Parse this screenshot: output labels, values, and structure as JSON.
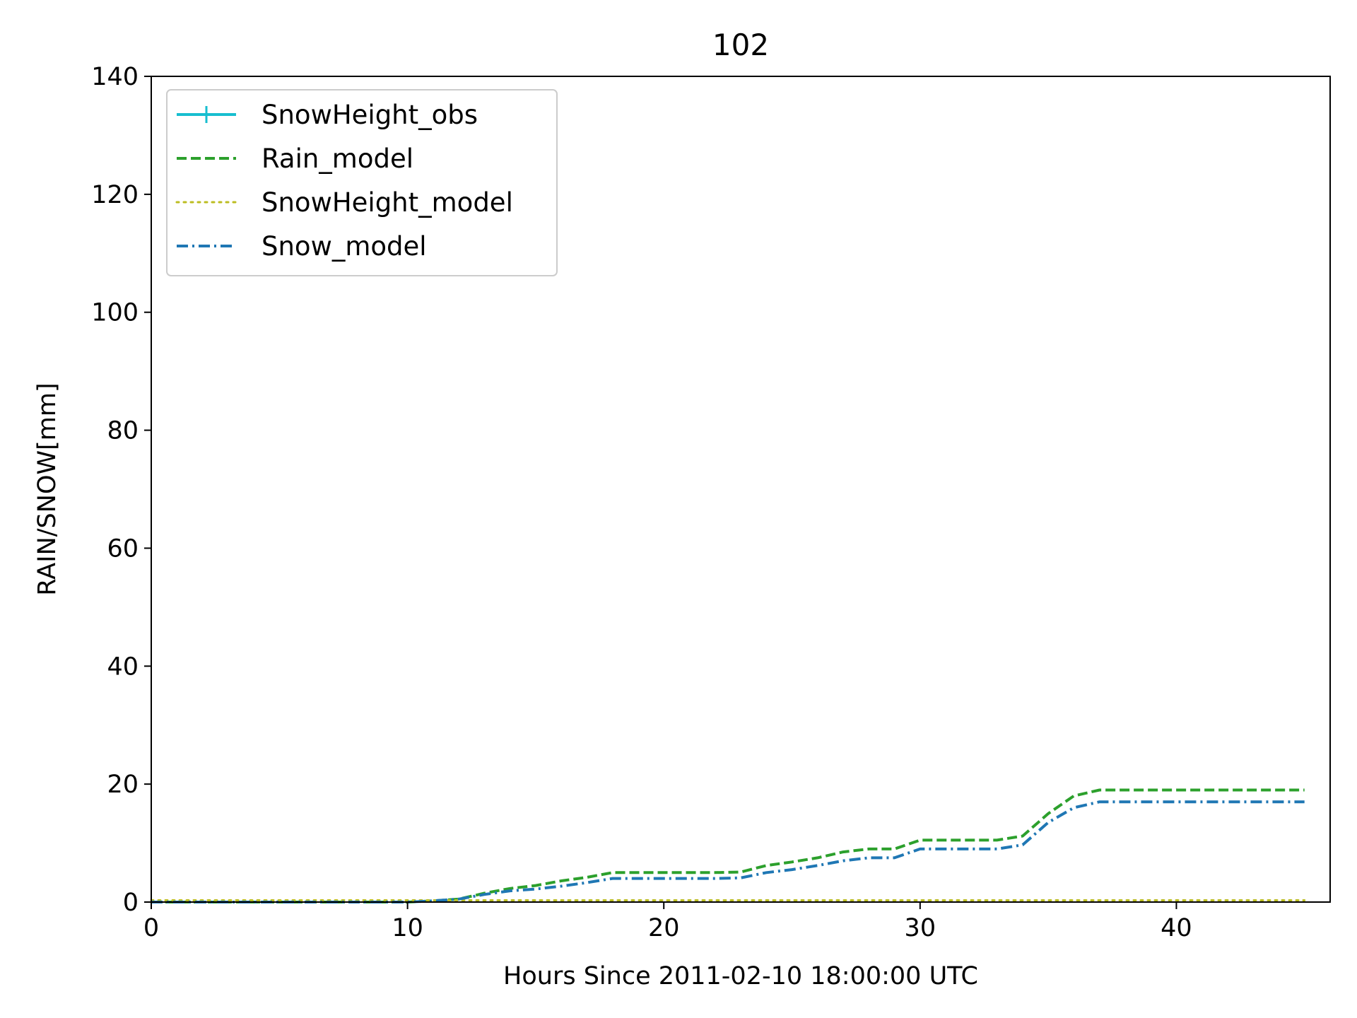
{
  "chart_data": {
    "type": "line",
    "title": "102",
    "xlabel": "Hours Since 2011-02-10 18:00:00 UTC",
    "ylabel": "RAIN/SNOW[mm]",
    "xlim": [
      0,
      46
    ],
    "ylim": [
      0,
      140
    ],
    "xticks": [
      0,
      10,
      20,
      30,
      40
    ],
    "yticks": [
      0,
      20,
      40,
      60,
      80,
      100,
      120,
      140
    ],
    "grid": false,
    "legend_position": "upper left",
    "series": [
      {
        "name": "SnowHeight_obs",
        "color": "#17becf",
        "style": "solid-with-plus-markers",
        "x": [],
        "y": []
      },
      {
        "name": "Rain_model",
        "color": "#2ca02c",
        "style": "dashed",
        "x": [
          0,
          1,
          2,
          3,
          4,
          5,
          6,
          7,
          8,
          9,
          10,
          11,
          12,
          13,
          14,
          15,
          16,
          17,
          18,
          19,
          20,
          21,
          22,
          23,
          24,
          25,
          26,
          27,
          28,
          29,
          30,
          31,
          32,
          33,
          34,
          35,
          36,
          37,
          38,
          39,
          40,
          41,
          42,
          43,
          44,
          45
        ],
        "y": [
          0,
          0,
          0,
          0,
          0,
          0,
          0,
          0,
          0,
          0,
          0,
          0.2,
          0.5,
          1.5,
          2.3,
          2.8,
          3.6,
          4.2,
          5.0,
          5.0,
          5.0,
          5.0,
          5.0,
          5.1,
          6.2,
          6.8,
          7.5,
          8.5,
          9.0,
          9.0,
          10.5,
          10.5,
          10.5,
          10.5,
          11.2,
          15.0,
          18.0,
          19.0,
          19.0,
          19.0,
          19.0,
          19.0,
          19.0,
          19.0,
          19.0,
          19.0
        ]
      },
      {
        "name": "SnowHeight_model",
        "color": "#bcbd22",
        "style": "dotted",
        "x": [
          0,
          45
        ],
        "y": [
          0.3,
          0.3
        ]
      },
      {
        "name": "Snow_model",
        "color": "#1f77b4",
        "style": "dashdot",
        "x": [
          0,
          1,
          2,
          3,
          4,
          5,
          6,
          7,
          8,
          9,
          10,
          11,
          12,
          13,
          14,
          15,
          16,
          17,
          18,
          19,
          20,
          21,
          22,
          23,
          24,
          25,
          26,
          27,
          28,
          29,
          30,
          31,
          32,
          33,
          34,
          35,
          36,
          37,
          38,
          39,
          40,
          41,
          42,
          43,
          44,
          45
        ],
        "y": [
          0,
          0,
          0,
          0,
          0,
          0,
          0,
          0,
          0,
          0,
          0,
          0.2,
          0.5,
          1.3,
          1.9,
          2.2,
          2.7,
          3.3,
          4.0,
          4.0,
          4.0,
          4.0,
          4.0,
          4.1,
          5.0,
          5.5,
          6.2,
          7.0,
          7.5,
          7.5,
          9.0,
          9.0,
          9.0,
          9.0,
          9.7,
          13.5,
          16.0,
          17.0,
          17.0,
          17.0,
          17.0,
          17.0,
          17.0,
          17.0,
          17.0,
          17.0
        ]
      }
    ]
  }
}
